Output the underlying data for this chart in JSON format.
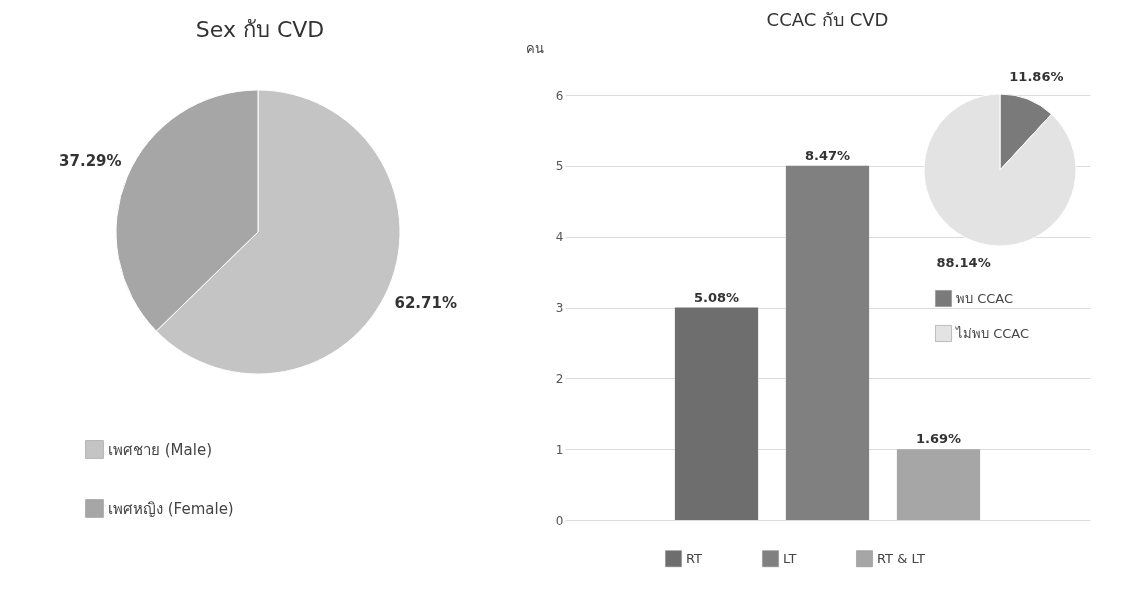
{
  "chart_data": [
    {
      "type": "pie",
      "title": "Sex กับ CVD",
      "categories": [
        "เพศชาย (Male)",
        "เพศหญิง (Female)"
      ],
      "values": [
        62.71,
        37.29
      ],
      "colors": [
        "#c4c4c4",
        "#a6a6a6"
      ],
      "value_labels": [
        "62.71%",
        "37.29%"
      ],
      "legend": "bottom left"
    },
    {
      "type": "bar",
      "title": "CCAC กับ CVD",
      "ylabel": "คน",
      "categories": [
        "RT",
        "LT",
        "RT & LT"
      ],
      "values": [
        3,
        5,
        1
      ],
      "colors": [
        "#6e6e6e",
        "#808080",
        "#a6a6a6"
      ],
      "annotations": [
        {
          "text": "5.08%",
          "x": "RT",
          "y": 3
        },
        {
          "text": "8.47%",
          "x": "LT",
          "y": 5
        },
        {
          "text": "1.69%",
          "x": "RT & LT",
          "y": 1
        }
      ],
      "ylim": [
        0,
        6
      ],
      "yticks": [
        0,
        1,
        2,
        3,
        4,
        5,
        6
      ],
      "grid": "y",
      "tick_labels": "y"
    },
    {
      "type": "pie",
      "categories": [
        "พบ CCAC",
        "ไม่พบ CCAC"
      ],
      "values": [
        11.86,
        88.14
      ],
      "colors": [
        "#7a7a7a",
        "#e3e3e3"
      ],
      "value_labels": [
        "11.86%",
        "88.14%"
      ],
      "legend": "bottom"
    }
  ]
}
